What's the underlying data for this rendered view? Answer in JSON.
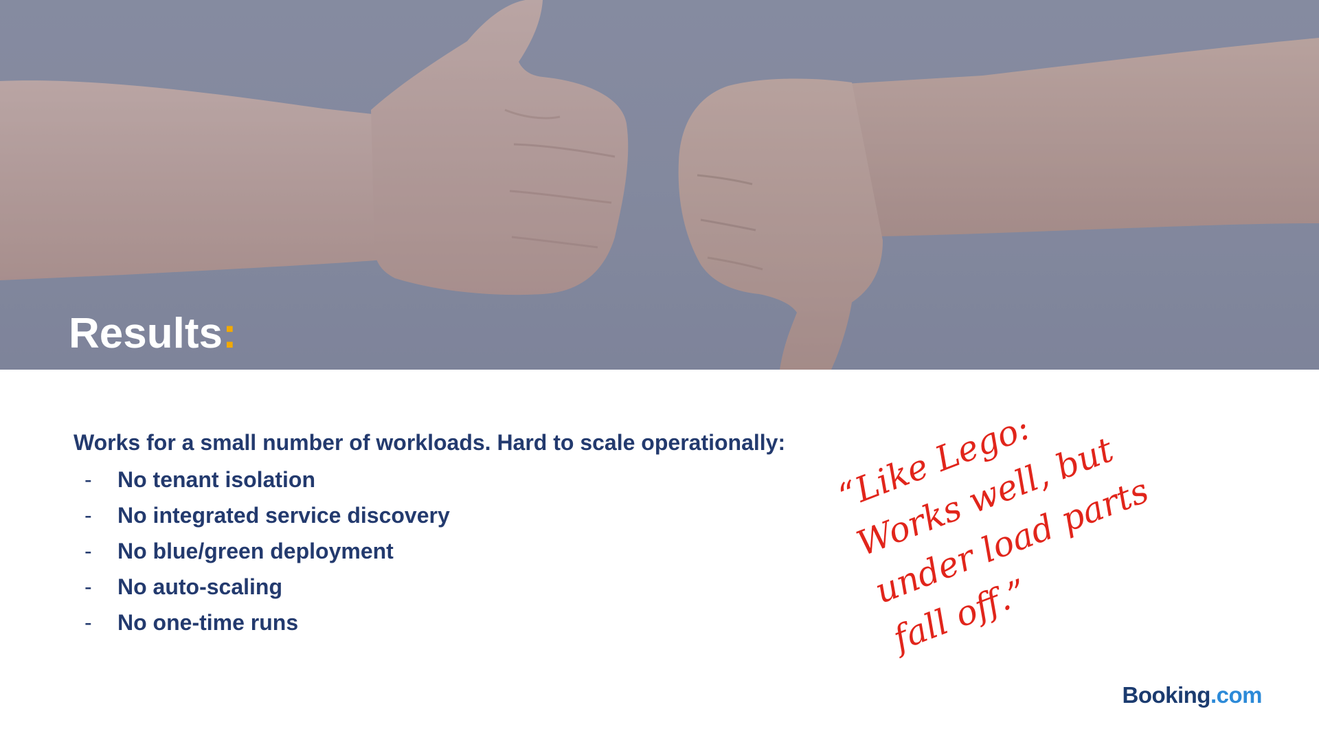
{
  "slide": {
    "title": "Results",
    "title_colon": ":",
    "intro": "Works for a small number of workloads. Hard to scale operationally:",
    "bullet_marker": "-",
    "bullets": [
      "No tenant isolation",
      "No integrated service discovery",
      "No blue/green deployment",
      "No auto-scaling",
      "No one-time runs"
    ],
    "quote_lines": [
      "“Like Lego:",
      "Works well, but",
      "under load parts",
      "fall off.”"
    ],
    "logo": {
      "brand": "Booking",
      "dot": ".",
      "tld": "com"
    }
  },
  "colors": {
    "title_accent": "#f2a900",
    "body_text": "#233a6e",
    "quote_text": "#e1251b",
    "logo_brand": "#1b3b6f",
    "logo_tld": "#2c8ad8"
  },
  "image": {
    "description_icon": "thumbs-up-and-thumbs-down-hands-photo"
  }
}
